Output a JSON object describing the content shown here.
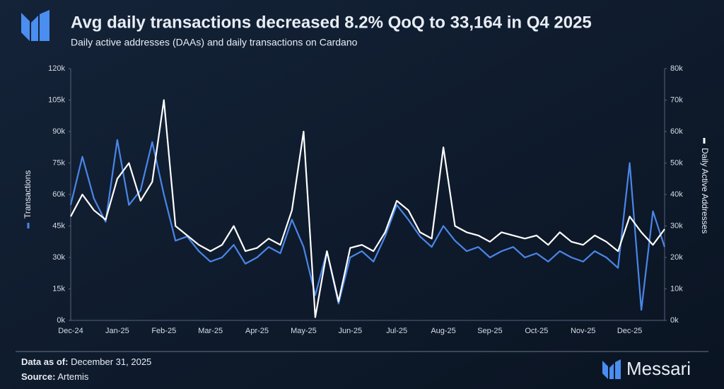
{
  "chart_data": {
    "type": "line",
    "title": "Avg daily transactions decreased 8.2% QoQ to 33,164 in Q4 2025",
    "subtitle": "Daily active addresses (DAAs) and daily transactions on Cardano",
    "categories": [
      "Dec-24",
      null,
      null,
      null,
      "Jan-25",
      null,
      null,
      null,
      "Feb-25",
      null,
      null,
      null,
      "Mar-25",
      null,
      null,
      null,
      "Apr-25",
      null,
      null,
      null,
      "May-25",
      null,
      null,
      null,
      "Jun-25",
      null,
      null,
      null,
      "Jul-25",
      null,
      null,
      null,
      "Aug-25",
      null,
      null,
      null,
      "Sep-25",
      null,
      null,
      null,
      "Oct-25",
      null,
      null,
      null,
      "Nov-25",
      null,
      null,
      null,
      "Dec-25",
      null,
      null,
      null
    ],
    "series": [
      {
        "name": "Transactions",
        "color": "#4a86e8",
        "axis": "y",
        "values": [
          55000,
          78000,
          58000,
          47000,
          86000,
          55000,
          62000,
          85000,
          60000,
          38000,
          40000,
          33000,
          28000,
          30000,
          36000,
          27000,
          30000,
          35000,
          32000,
          48000,
          35000,
          12000,
          33000,
          8000,
          30000,
          33000,
          28000,
          40000,
          55000,
          48000,
          40000,
          35000,
          45000,
          38000,
          33000,
          35000,
          30000,
          33000,
          35000,
          30000,
          32000,
          28000,
          33000,
          30000,
          28000,
          33000,
          30000,
          25000,
          75000,
          5000,
          52000,
          35000
        ]
      },
      {
        "name": "Daily Active Addresses",
        "color": "#ffffff",
        "axis": "y2",
        "values": [
          33000,
          40000,
          35000,
          32000,
          45000,
          50000,
          38000,
          44000,
          70000,
          30000,
          27000,
          24000,
          22000,
          24000,
          30000,
          22000,
          23000,
          26000,
          24000,
          35000,
          60000,
          1000,
          22000,
          6000,
          23000,
          24000,
          22000,
          28000,
          38000,
          35000,
          28000,
          26000,
          55000,
          30000,
          28000,
          27000,
          25000,
          28000,
          27000,
          26000,
          27000,
          24000,
          28000,
          25000,
          24000,
          27000,
          25000,
          22000,
          33000,
          28000,
          24000,
          29000
        ]
      }
    ],
    "ylim": [
      0,
      120000
    ],
    "yticks": [
      {
        "value": 0,
        "label": "0k"
      },
      {
        "value": 15000,
        "label": "15k"
      },
      {
        "value": 30000,
        "label": "30k"
      },
      {
        "value": 45000,
        "label": "45k"
      },
      {
        "value": 60000,
        "label": "60k"
      },
      {
        "value": 75000,
        "label": "75k"
      },
      {
        "value": 90000,
        "label": "90k"
      },
      {
        "value": 105000,
        "label": "105k"
      },
      {
        "value": 120000,
        "label": "120k"
      }
    ],
    "y2lim": [
      0,
      80000
    ],
    "y2ticks": [
      {
        "value": 0,
        "label": "0k"
      },
      {
        "value": 10000,
        "label": "10k"
      },
      {
        "value": 20000,
        "label": "20k"
      },
      {
        "value": 30000,
        "label": "30k"
      },
      {
        "value": 40000,
        "label": "40k"
      },
      {
        "value": 50000,
        "label": "50k"
      },
      {
        "value": 60000,
        "label": "60k"
      },
      {
        "value": 70000,
        "label": "70k"
      },
      {
        "value": 80000,
        "label": "80k"
      }
    ],
    "grid": false
  },
  "footer": {
    "data_as_of_label": "Data as of:",
    "data_as_of": "December 31, 2025",
    "source_label": "Source:",
    "source": "Artemis"
  },
  "brand": "Messari"
}
